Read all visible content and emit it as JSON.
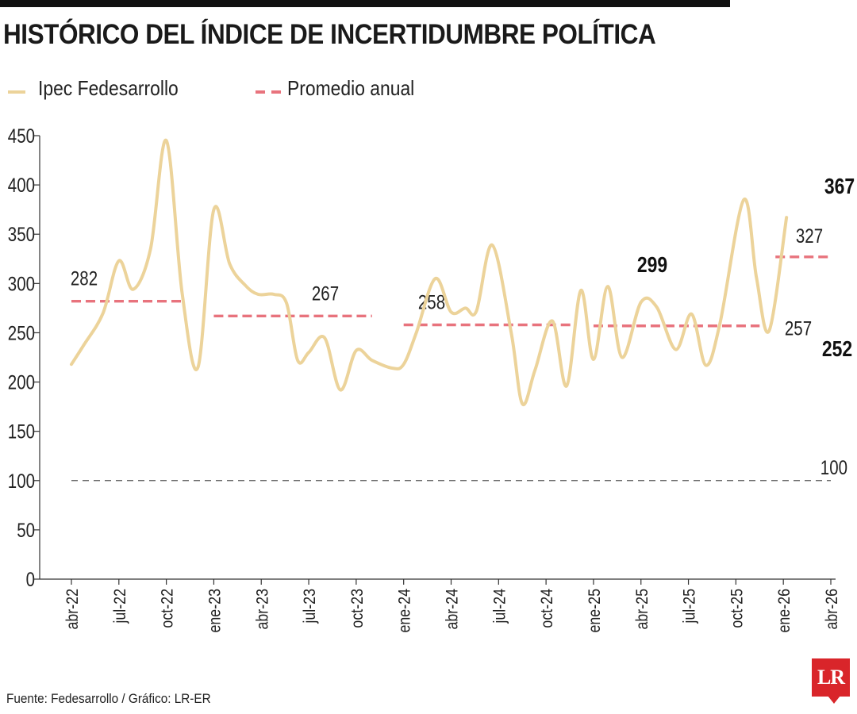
{
  "title": "HISTÓRICO DEL ÍNDICE DE INCERTIDUMBRE POLÍTICA",
  "legend": {
    "series_label": "Ipec Fedesarrollo",
    "average_label": "Promedio anual"
  },
  "source": "Fuente: Fedesarrollo / Gráfico: LR-ER",
  "logo_text": "LR",
  "colors": {
    "series": "#ecd39a",
    "average": "#e8737d",
    "reference": "#555555",
    "axis": "#333333",
    "logo": "#d9252a"
  },
  "chart_data": {
    "type": "line",
    "ylim": [
      0,
      450
    ],
    "yticks": [
      0,
      50,
      100,
      150,
      200,
      250,
      300,
      350,
      400,
      450
    ],
    "xlim": [
      0,
      48
    ],
    "xticks": [
      {
        "label": "abr-22",
        "x": 0
      },
      {
        "label": "jul-22",
        "x": 3
      },
      {
        "label": "oct-22",
        "x": 6
      },
      {
        "label": "ene-23",
        "x": 9
      },
      {
        "label": "abr-23",
        "x": 12
      },
      {
        "label": "jul-23",
        "x": 15
      },
      {
        "label": "oct-23",
        "x": 18
      },
      {
        "label": "ene-24",
        "x": 21
      },
      {
        "label": "abr-24",
        "x": 24
      },
      {
        "label": "jul-24",
        "x": 27
      },
      {
        "label": "oct-24",
        "x": 30
      },
      {
        "label": "ene-25",
        "x": 33
      },
      {
        "label": "abr-25",
        "x": 36
      },
      {
        "label": "jul-25",
        "x": 39
      },
      {
        "label": "oct-25",
        "x": 42
      },
      {
        "label": "ene-26",
        "x": 45
      },
      {
        "label": "abr-26",
        "x": 48
      }
    ],
    "series": [
      {
        "name": "Ipec Fedesarrollo",
        "points": [
          [
            0,
            218
          ],
          [
            0.8,
            238
          ],
          [
            2,
            270
          ],
          [
            3,
            323
          ],
          [
            3.9,
            294
          ],
          [
            5,
            335
          ],
          [
            6,
            445
          ],
          [
            7,
            290
          ],
          [
            8,
            215
          ],
          [
            9,
            375
          ],
          [
            10,
            320
          ],
          [
            11,
            298
          ],
          [
            11.8,
            289
          ],
          [
            12.8,
            289
          ],
          [
            13.6,
            280
          ],
          [
            14.3,
            222
          ],
          [
            15,
            230
          ],
          [
            16,
            245
          ],
          [
            17,
            192
          ],
          [
            18,
            232
          ],
          [
            19,
            222
          ],
          [
            20.3,
            214
          ],
          [
            21,
            218
          ],
          [
            21.8,
            250
          ],
          [
            23,
            305
          ],
          [
            24,
            271
          ],
          [
            24.9,
            275
          ],
          [
            25.6,
            272
          ],
          [
            26.6,
            339
          ],
          [
            27.8,
            250
          ],
          [
            28.5,
            178
          ],
          [
            29.3,
            212
          ],
          [
            30.4,
            262
          ],
          [
            31.3,
            196
          ],
          [
            32.2,
            293
          ],
          [
            33,
            223
          ],
          [
            33.9,
            297
          ],
          [
            34.8,
            225
          ],
          [
            36,
            281
          ],
          [
            37,
            276
          ],
          [
            38.2,
            233
          ],
          [
            39.2,
            269
          ],
          [
            40.1,
            217
          ],
          [
            41,
            260
          ],
          [
            42.5,
            385
          ],
          [
            43.3,
            306
          ],
          [
            44.1,
            252
          ],
          [
            45.2,
            367
          ]
        ]
      }
    ],
    "averages": [
      {
        "label": "282",
        "value": 282,
        "x_start": 0,
        "x_end": 7
      },
      {
        "label": "267",
        "value": 267,
        "x_start": 9,
        "x_end": 19
      },
      {
        "label": "258",
        "value": 258,
        "x_start": 21,
        "x_end": 31.8
      },
      {
        "label": "257",
        "value": 257,
        "x_start": 33,
        "x_end": 43.5
      },
      {
        "label": "327",
        "value": 327,
        "x_start": 44.5,
        "x_end": 48
      }
    ],
    "reference_line": {
      "label": "100",
      "value": 100
    },
    "annotations": [
      {
        "label": "299",
        "x": 34.4,
        "y": 299,
        "bold": true
      },
      {
        "label": "367",
        "x": 45.2,
        "y": 367,
        "bold": true
      },
      {
        "label": "252",
        "x": 44.1,
        "y": 252,
        "bold": true
      }
    ]
  }
}
